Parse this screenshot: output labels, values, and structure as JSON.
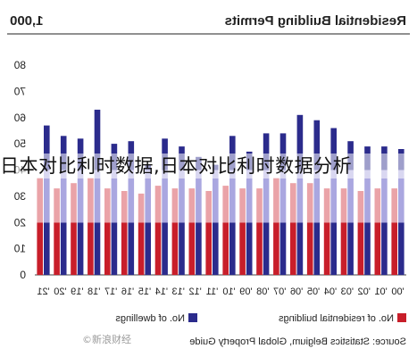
{
  "chart_data": {
    "type": "bar",
    "title": "Residential Building Permits",
    "unit_label": "1,000",
    "categories": [
      "'00",
      "'01",
      "'02",
      "'03",
      "'04",
      "'05",
      "'06",
      "'07",
      "'08",
      "'09",
      "'10",
      "'11",
      "'12",
      "'13",
      "'14",
      "'15",
      "'16",
      "'17",
      "'18",
      "'19",
      "'20",
      "'21"
    ],
    "series": [
      {
        "name": "No. of dwellings",
        "color": "#2b2b8c",
        "light_color": "#aaa7e0",
        "values": [
          48,
          49,
          49,
          51,
          56,
          59,
          61,
          54,
          54,
          47,
          53,
          42,
          45,
          49,
          52,
          42,
          51,
          50,
          63,
          52,
          53,
          57
        ]
      },
      {
        "name": "No. of residential buildings",
        "color": "#c81e2a",
        "light_color": "#eaa3a8",
        "values": [
          33,
          33,
          32,
          33,
          33,
          35,
          35,
          37,
          33,
          33,
          34,
          32,
          33,
          33,
          34,
          31,
          32,
          33,
          37,
          35,
          33,
          37
        ]
      }
    ],
    "xlabel": "",
    "ylabel": "",
    "ylim": [
      0,
      80
    ],
    "yticks": [
      0,
      10,
      20,
      30,
      40,
      50,
      60,
      70,
      80
    ],
    "band_range": [
      20,
      40
    ],
    "grid": false,
    "legend_placement": "bottom",
    "source": "Source: Statistics Belgium, Global Property Guide"
  },
  "overlay_text": "日本对比利时数据,日本对比利时数据分析",
  "watermark_text": "©新浪财经"
}
